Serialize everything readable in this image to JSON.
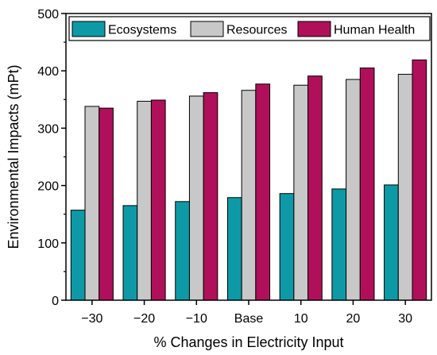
{
  "chart_data": {
    "type": "bar",
    "xlabel": "% Changes in Electricity Input",
    "ylabel": "Environmental Impacts (mPt)",
    "ylim": [
      0,
      500
    ],
    "yticks": [
      0,
      100,
      200,
      300,
      400,
      500
    ],
    "categories": [
      "−30",
      "−20",
      "−10",
      "Base",
      "10",
      "20",
      "30"
    ],
    "series": [
      {
        "name": "Ecosystems",
        "color": "#0d9aa6",
        "values": [
          157,
          165,
          172,
          179,
          186,
          194,
          201
        ]
      },
      {
        "name": "Resources",
        "color": "#c8c8c8",
        "values": [
          338,
          347,
          356,
          366,
          375,
          385,
          394
        ]
      },
      {
        "name": "Human Health",
        "color": "#b0105a",
        "values": [
          335,
          349,
          362,
          377,
          391,
          405,
          419
        ]
      }
    ],
    "legend_position": "top",
    "grid": false
  }
}
